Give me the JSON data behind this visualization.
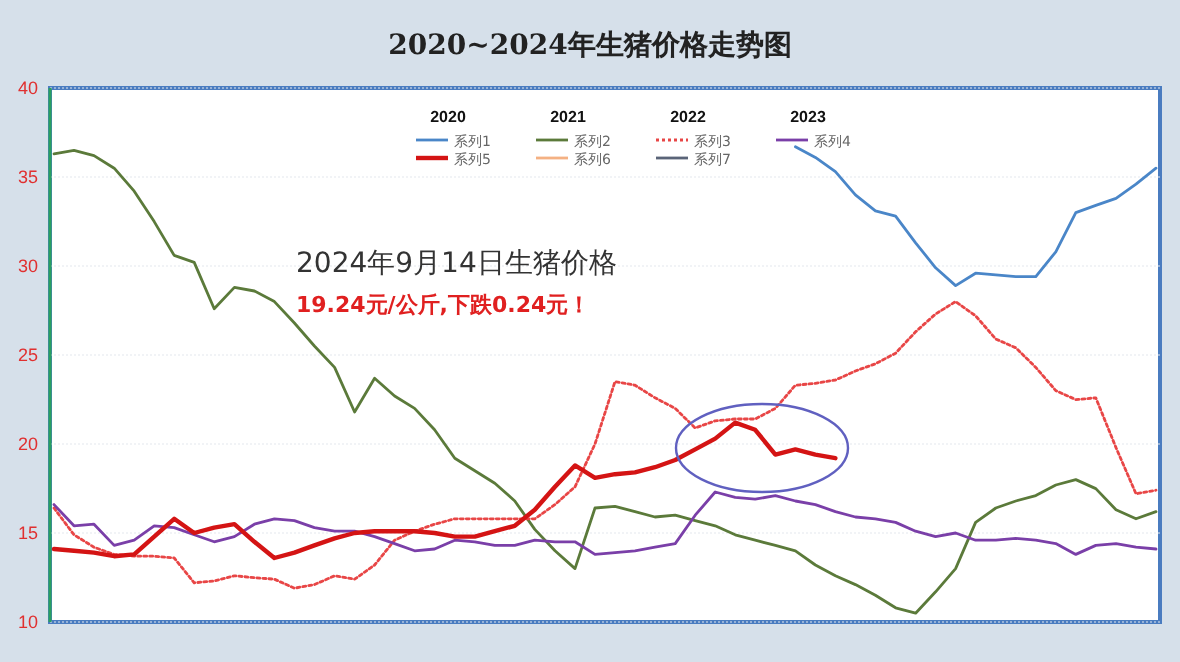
{
  "chart_data": {
    "type": "line",
    "title": "2020~2024年生猪价格走势图",
    "categories": [
      null,
      null,
      null,
      null,
      null,
      null,
      null,
      null,
      null,
      null,
      null,
      null,
      null,
      null,
      null,
      null,
      null,
      null,
      null,
      null,
      null,
      null,
      null,
      null,
      null,
      null,
      null,
      null,
      null,
      null,
      null,
      null,
      null,
      null,
      null,
      null,
      null,
      null,
      null,
      null,
      null,
      null,
      null,
      null,
      null,
      null,
      null,
      null,
      null,
      null,
      null,
      null,
      null,
      null,
      null,
      null
    ],
    "ylim": [
      10,
      40
    ],
    "yticks": [
      10,
      15,
      20,
      25,
      30,
      35,
      40
    ],
    "grid": "y",
    "legend": "top",
    "marker": "none",
    "annotations": [
      "2020",
      "2021",
      "2022",
      "2023",
      "2024年9月14日生猪价格",
      "19.24元/公斤,下跌0.24元！"
    ],
    "series": [
      {
        "name": "系列1",
        "color": "#4a86c8",
        "line_style": "solid",
        "values": [
          null,
          null,
          null,
          null,
          null,
          null,
          null,
          null,
          null,
          null,
          null,
          null,
          null,
          null,
          null,
          null,
          null,
          null,
          null,
          null,
          null,
          null,
          null,
          null,
          null,
          null,
          null,
          null,
          null,
          null,
          null,
          null,
          null,
          null,
          null,
          null,
          null,
          36.7,
          36.1,
          35.3,
          34.0,
          33.1,
          32.8,
          31.3,
          29.9,
          28.9,
          29.6,
          29.5,
          29.4,
          29.4,
          30.8,
          33.0,
          33.4,
          33.8,
          34.6,
          35.5
        ]
      },
      {
        "name": "系列2",
        "color": "#5b7a3a",
        "line_style": "solid",
        "values": [
          36.3,
          36.5,
          36.2,
          35.5,
          34.2,
          32.5,
          30.6,
          30.2,
          27.6,
          28.8,
          28.6,
          28.0,
          26.8,
          25.5,
          24.3,
          21.8,
          23.7,
          22.7,
          22.0,
          20.8,
          19.2,
          18.5,
          17.8,
          16.8,
          15.2,
          14.0,
          13.0,
          16.4,
          16.5,
          16.2,
          15.9,
          16.0,
          15.7,
          15.4,
          14.9,
          14.6,
          14.3,
          14.0,
          13.2,
          12.6,
          12.1,
          11.5,
          10.8,
          10.5,
          11.7,
          13.0,
          15.6,
          16.4,
          16.8,
          17.1,
          17.7,
          18.0,
          17.5,
          16.3,
          15.8,
          16.2
        ]
      },
      {
        "name": "系列3",
        "color": "#e84646",
        "line_style": "dotted",
        "values": [
          16.4,
          14.9,
          14.2,
          13.8,
          13.7,
          13.7,
          13.6,
          12.2,
          12.3,
          12.6,
          12.5,
          12.4,
          11.9,
          12.1,
          12.6,
          12.4,
          13.2,
          14.6,
          15.1,
          15.5,
          15.8,
          15.8,
          15.8,
          15.8,
          15.8,
          16.6,
          17.6,
          20.0,
          23.5,
          23.3,
          22.6,
          22.0,
          20.9,
          21.3,
          21.4,
          21.4,
          22.0,
          23.3,
          23.4,
          23.6,
          24.1,
          24.5,
          25.1,
          26.3,
          27.3,
          28.0,
          27.2,
          25.9,
          25.4,
          24.3,
          23.0,
          22.5,
          22.6,
          19.8,
          17.2,
          17.4
        ]
      },
      {
        "name": "系列4",
        "color": "#7a3fa8",
        "line_style": "solid",
        "values": [
          16.6,
          15.4,
          15.5,
          14.3,
          14.6,
          15.4,
          15.3,
          14.9,
          14.5,
          14.8,
          15.5,
          15.8,
          15.7,
          15.3,
          15.1,
          15.1,
          14.8,
          14.4,
          14.0,
          14.1,
          14.6,
          14.5,
          14.3,
          14.3,
          14.6,
          14.5,
          14.5,
          13.8,
          13.9,
          14.0,
          14.2,
          14.4,
          16.0,
          17.3,
          17.0,
          16.9,
          17.1,
          16.8,
          16.6,
          16.2,
          15.9,
          15.8,
          15.6,
          15.1,
          14.8,
          15.0,
          14.6,
          14.6,
          14.7,
          14.6,
          14.4,
          13.8,
          14.3,
          14.4,
          14.2,
          14.1
        ]
      },
      {
        "name": "系列5",
        "color": "#d41414",
        "line_style": "solid",
        "values": [
          14.1,
          14.0,
          13.9,
          13.7,
          13.8,
          14.8,
          15.8,
          15.0,
          15.3,
          15.5,
          14.5,
          13.6,
          13.9,
          14.3,
          14.7,
          15.0,
          15.1,
          15.1,
          15.1,
          15.0,
          14.8,
          14.8,
          15.1,
          15.4,
          16.3,
          17.6,
          18.8,
          18.1,
          18.3,
          18.4,
          18.7,
          19.1,
          19.7,
          20.3,
          21.2,
          20.8,
          19.4,
          19.7,
          19.4,
          19.2,
          null,
          null,
          null,
          null,
          null,
          null,
          null,
          null,
          null,
          null,
          null,
          null,
          null,
          null,
          null,
          null
        ]
      },
      {
        "name": "系列6",
        "color": "#f4b183",
        "line_style": "solid",
        "values": [
          null,
          null,
          null,
          null,
          null,
          null,
          null,
          null,
          null,
          null,
          null,
          null,
          null,
          null,
          null,
          null,
          null,
          null,
          null,
          null,
          null,
          null,
          null,
          null,
          null,
          null,
          null,
          null,
          null,
          null,
          null,
          null,
          null,
          null,
          null,
          null,
          null,
          null,
          null,
          null,
          null,
          null,
          null,
          null,
          null,
          null,
          null,
          null,
          null,
          null,
          null,
          null,
          null,
          null,
          null,
          null
        ]
      },
      {
        "name": "系列7",
        "color": "#5a6478",
        "line_style": "solid",
        "values": [
          null,
          null,
          null,
          null,
          null,
          null,
          null,
          null,
          null,
          null,
          null,
          null,
          null,
          null,
          null,
          null,
          null,
          null,
          null,
          null,
          null,
          null,
          null,
          null,
          null,
          null,
          null,
          null,
          null,
          null,
          null,
          null,
          null,
          null,
          null,
          null,
          null,
          null,
          null,
          null,
          null,
          null,
          null,
          null,
          null,
          null,
          null,
          null,
          null,
          null,
          null,
          null,
          null,
          null,
          null,
          null
        ]
      }
    ]
  }
}
